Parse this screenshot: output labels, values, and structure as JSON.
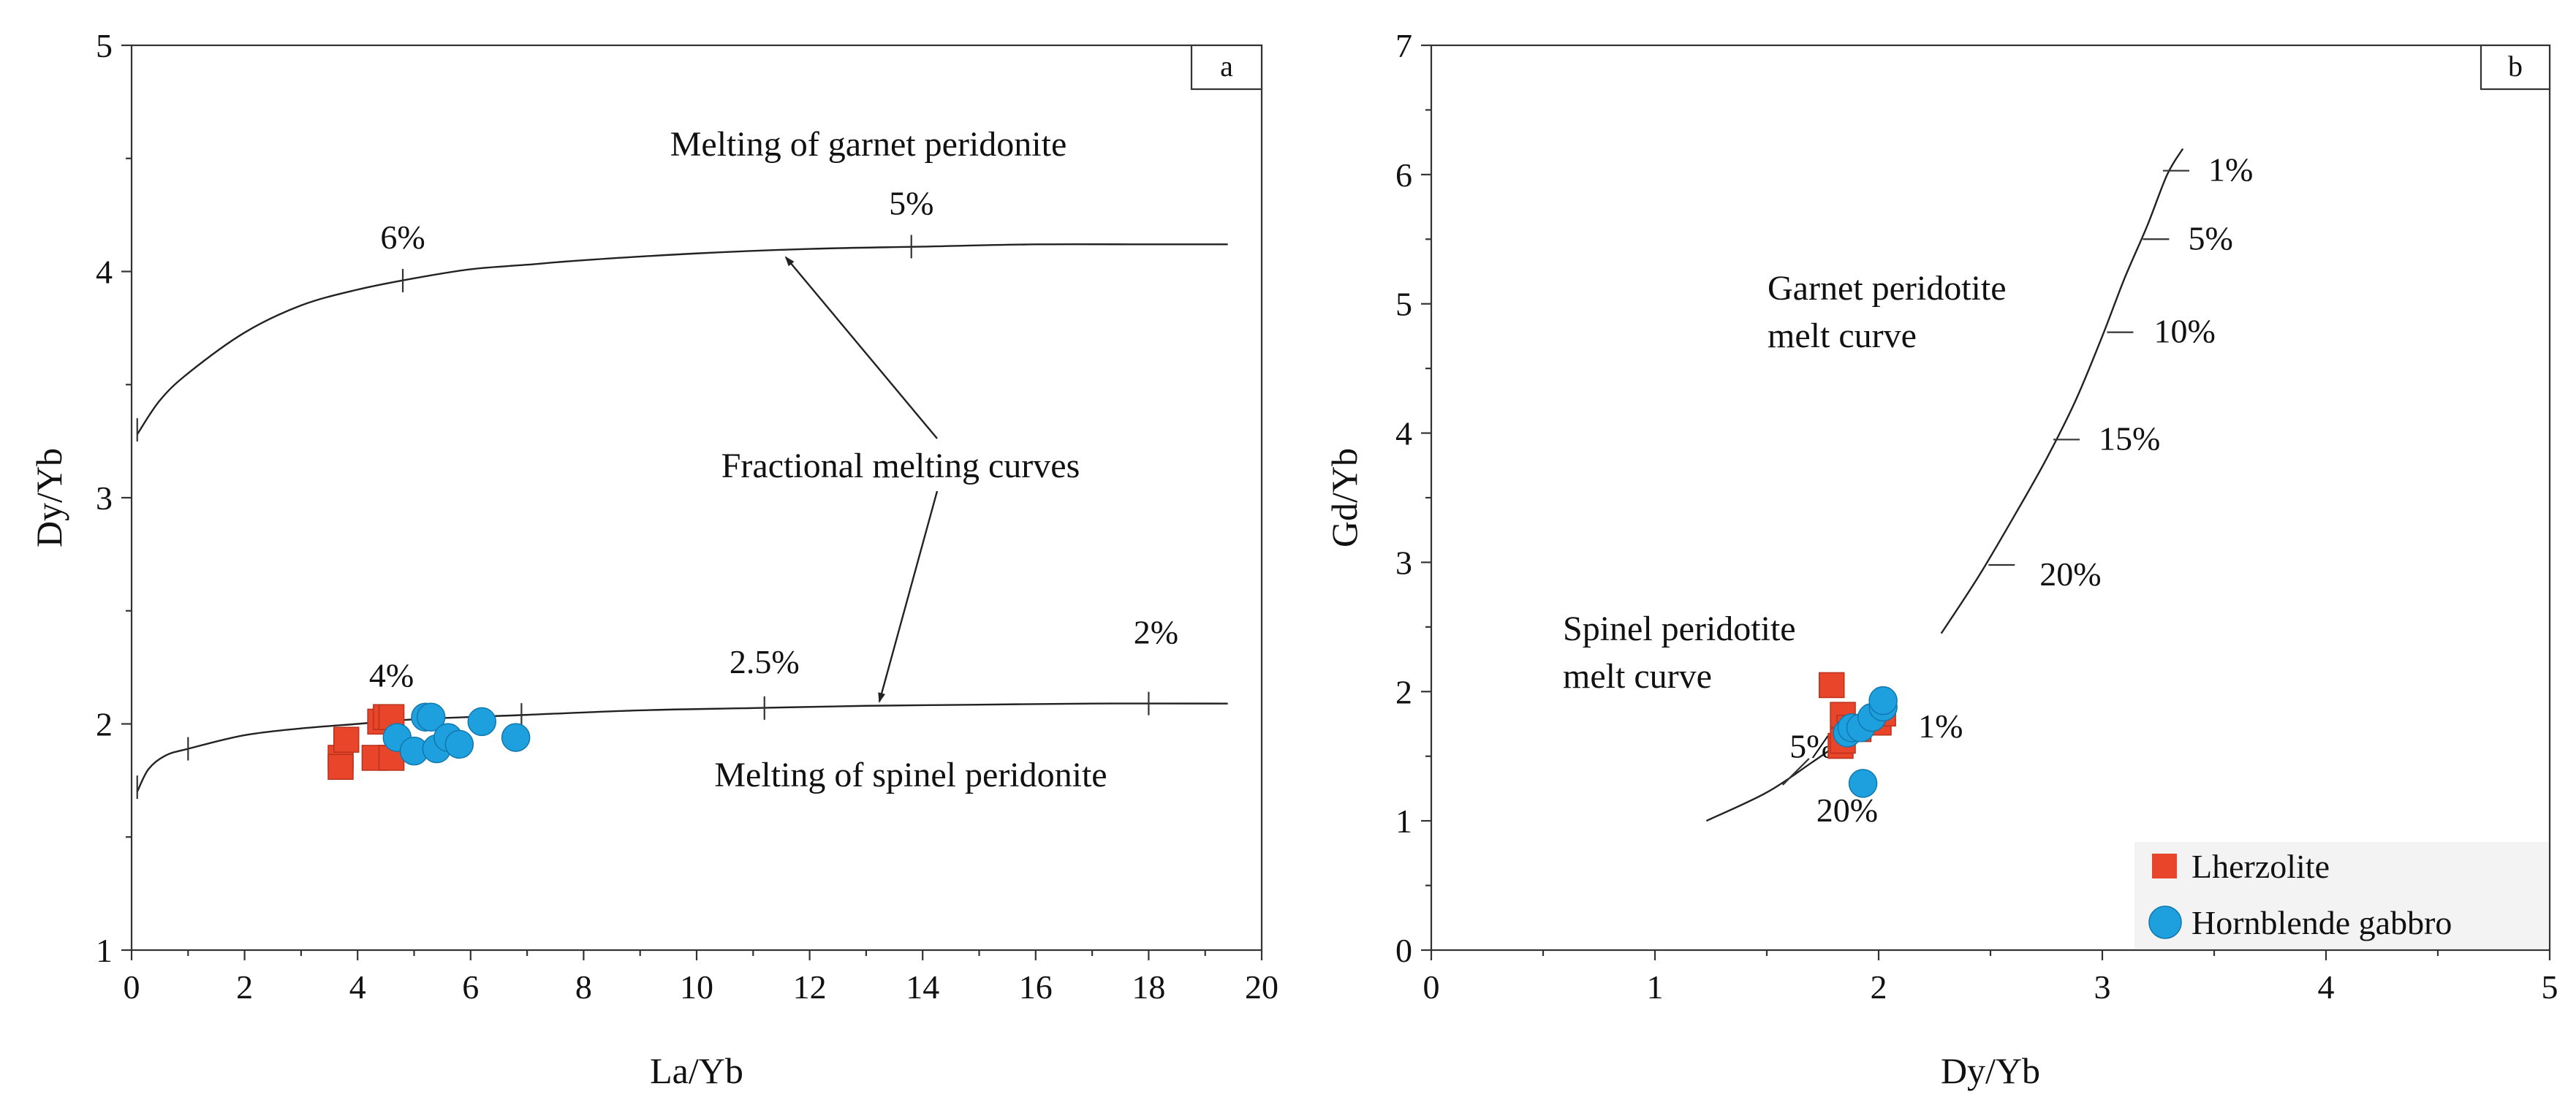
{
  "chart_data": [
    {
      "id": "a",
      "type": "scatter",
      "panel_label": "a",
      "xlabel": "La/Yb",
      "ylabel": "Dy/Yb",
      "xlim": [
        0,
        20
      ],
      "ylim": [
        1,
        5
      ],
      "xticks": [
        "0",
        "2",
        "4",
        "6",
        "8",
        "10",
        "12",
        "14",
        "16",
        "18",
        "20"
      ],
      "yticks": [
        "1",
        "2",
        "3",
        "4",
        "5"
      ],
      "curves": [
        {
          "name": "Melting of garnet peridonite",
          "points": [
            [
              0.1,
              3.28
            ],
            [
              0.5,
              3.43
            ],
            [
              1,
              3.55
            ],
            [
              2,
              3.73
            ],
            [
              3,
              3.85
            ],
            [
              4,
              3.92
            ],
            [
              5,
              3.97
            ],
            [
              6,
              4.01
            ],
            [
              7,
              4.03
            ],
            [
              8,
              4.05
            ],
            [
              10,
              4.08
            ],
            [
              12,
              4.1
            ],
            [
              14,
              4.11
            ],
            [
              16,
              4.12
            ],
            [
              18,
              4.12
            ],
            [
              19.4,
              4.12
            ]
          ],
          "marks": [
            {
              "x": 0.1,
              "y": 3.3,
              "label": ""
            },
            {
              "x": 4.8,
              "y": 3.96,
              "label": "6%"
            },
            {
              "x": 13.8,
              "y": 4.11,
              "label": "5%"
            }
          ]
        },
        {
          "name": "Melting of spinel peridonite",
          "points": [
            [
              0.1,
              1.7
            ],
            [
              0.3,
              1.8
            ],
            [
              0.6,
              1.86
            ],
            [
              1,
              1.89
            ],
            [
              2,
              1.95
            ],
            [
              3,
              1.98
            ],
            [
              4,
              2.0
            ],
            [
              5,
              2.02
            ],
            [
              7,
              2.04
            ],
            [
              9,
              2.06
            ],
            [
              11,
              2.07
            ],
            [
              13,
              2.08
            ],
            [
              15,
              2.085
            ],
            [
              17,
              2.09
            ],
            [
              19.4,
              2.09
            ]
          ],
          "marks": [
            {
              "x": 0.1,
              "y": 1.72,
              "label": ""
            },
            {
              "x": 1.0,
              "y": 1.89,
              "label": ""
            },
            {
              "x": 4.6,
              "y": 2.01,
              "label": "4%"
            },
            {
              "x": 6.9,
              "y": 2.04,
              "label": ""
            },
            {
              "x": 11.2,
              "y": 2.07,
              "label": "2.5%"
            },
            {
              "x": 18.0,
              "y": 2.09,
              "label": "2%"
            }
          ]
        }
      ],
      "series": [
        {
          "name": "Lherzolite",
          "marker": "square",
          "color": "#e8452a",
          "points": [
            [
              3.7,
              1.85
            ],
            [
              3.7,
              1.81
            ],
            [
              3.8,
              1.93
            ],
            [
              4.3,
              1.85
            ],
            [
              4.4,
              2.01
            ],
            [
              4.5,
              2.03
            ],
            [
              4.6,
              2.03
            ],
            [
              4.6,
              1.85
            ]
          ]
        },
        {
          "name": "Hornblende gabbro",
          "marker": "circle",
          "color": "#1ea0df",
          "points": [
            [
              4.7,
              1.94
            ],
            [
              5.0,
              1.88
            ],
            [
              5.2,
              2.03
            ],
            [
              5.3,
              2.03
            ],
            [
              5.4,
              1.89
            ],
            [
              5.6,
              1.94
            ],
            [
              5.8,
              1.91
            ],
            [
              6.2,
              2.01
            ],
            [
              6.8,
              1.94
            ]
          ]
        }
      ],
      "annotations": [
        {
          "text": "Melting of garnet peridonite",
          "x": 12.0,
          "y": 4.55
        },
        {
          "text": "Fractional melting curves",
          "x": 12.0,
          "y": 2.85
        },
        {
          "text": "Melting of spinel peridonite",
          "x": 12.5,
          "y": 1.78
        }
      ]
    },
    {
      "id": "b",
      "type": "scatter",
      "panel_label": "b",
      "xlabel": "Dy/Yb",
      "ylabel": "Gd/Yb",
      "xlim": [
        0,
        5
      ],
      "ylim": [
        0,
        7
      ],
      "xticks": [
        "0",
        "1",
        "2",
        "3",
        "4",
        "5"
      ],
      "yticks": [
        "0",
        "1",
        "2",
        "3",
        "4",
        "5",
        "6",
        "7"
      ],
      "curves": [
        {
          "name": "Garnet peridotite melt curve",
          "points": [
            [
              2.28,
              2.45
            ],
            [
              2.45,
              2.9
            ],
            [
              2.62,
              3.4
            ],
            [
              2.75,
              3.8
            ],
            [
              2.88,
              4.25
            ],
            [
              3.0,
              4.75
            ],
            [
              3.1,
              5.2
            ],
            [
              3.2,
              5.6
            ],
            [
              3.29,
              6.0
            ],
            [
              3.36,
              6.2
            ]
          ],
          "marks": [
            {
              "x": 3.33,
              "y": 6.03,
              "label": "1%"
            },
            {
              "x": 3.24,
              "y": 5.5,
              "label": "5%"
            },
            {
              "x": 3.08,
              "y": 4.78,
              "label": "10%"
            },
            {
              "x": 2.84,
              "y": 3.95,
              "label": "15%"
            },
            {
              "x": 2.55,
              "y": 2.98,
              "label": "20%"
            }
          ]
        },
        {
          "name": "Spinel peridotite melt curve",
          "points": [
            [
              1.23,
              1.0
            ],
            [
              1.5,
              1.22
            ],
            [
              1.7,
              1.45
            ],
            [
              1.85,
              1.63
            ],
            [
              1.95,
              1.75
            ],
            [
              2.08,
              1.92
            ]
          ],
          "marks": [
            {
              "x": 1.63,
              "y": 1.38,
              "label": "20%"
            },
            {
              "x": 1.85,
              "y": 1.66,
              "label": "5%"
            },
            {
              "x": 2.02,
              "y": 1.85,
              "label": "1%"
            }
          ]
        }
      ],
      "series": [
        {
          "name": "Lherzolite",
          "marker": "square",
          "color": "#e8452a",
          "points": [
            [
              1.79,
              2.05
            ],
            [
              1.84,
              1.82
            ],
            [
              1.83,
              1.58
            ],
            [
              1.84,
              1.62
            ],
            [
              1.87,
              1.72
            ],
            [
              1.91,
              1.71
            ],
            [
              2.0,
              1.76
            ],
            [
              2.02,
              1.83
            ]
          ]
        },
        {
          "name": "Hornblende gabbro",
          "marker": "circle",
          "color": "#1ea0df",
          "points": [
            [
              1.86,
              1.68
            ],
            [
              1.88,
              1.72
            ],
            [
              1.92,
              1.72
            ],
            [
              1.97,
              1.8
            ],
            [
              2.02,
              1.88
            ],
            [
              2.02,
              1.93
            ],
            [
              1.93,
              1.29
            ]
          ]
        }
      ],
      "annotations": [
        {
          "text": "Garnet peridotite",
          "x": 1.5,
          "y": 5.1
        },
        {
          "text": "melt curve",
          "x": 1.5,
          "y": 4.7
        },
        {
          "text": "Spinel peridotite",
          "x": 0.6,
          "y": 2.45
        },
        {
          "text": "melt curve",
          "x": 0.6,
          "y": 2.05
        }
      ],
      "legend": {
        "position": "bottom-right",
        "entries": [
          {
            "label": "Lherzolite",
            "marker": "square",
            "color": "#e8452a"
          },
          {
            "label": "Hornblende gabbro",
            "marker": "circle",
            "color": "#1ea0df"
          }
        ]
      }
    }
  ]
}
